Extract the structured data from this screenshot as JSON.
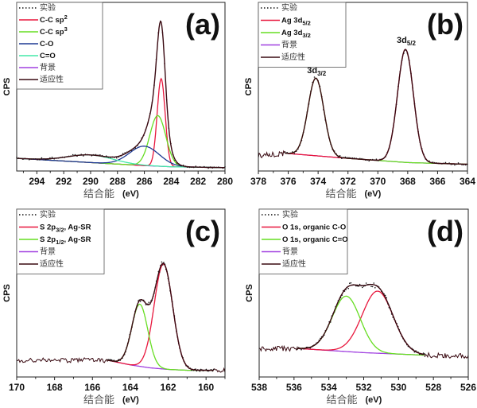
{
  "chart_data": [
    {
      "panel_label": "(a)",
      "type": "line",
      "xlabel": "结合能",
      "xunit": "(eV)",
      "ylabel": "CPS",
      "xlim": [
        295.5,
        280
      ],
      "ylim": [
        0,
        1
      ],
      "xticks": [
        294,
        292,
        290,
        288,
        286,
        284,
        282,
        280
      ],
      "fit_range": [
        295.5,
        280
      ],
      "background": [
        [
          295.5,
          0.075
        ],
        [
          290,
          0.05
        ],
        [
          286,
          0.032
        ],
        [
          284,
          0.025
        ],
        [
          280,
          0.02
        ]
      ],
      "components": [
        {
          "label": "C-C sp",
          "sup": "2",
          "color": "#e8163c",
          "center": 284.75,
          "amplitude": 0.52,
          "fwhm": 0.7
        },
        {
          "label": "C-C sp",
          "sup": "3",
          "color": "#66dd22",
          "center": 285.0,
          "amplitude": 0.3,
          "fwhm": 1.4
        },
        {
          "label": "C-O",
          "color": "#1f3a93",
          "center": 286.0,
          "amplitude": 0.115,
          "fwhm": 2.6
        },
        {
          "label": "C=O",
          "color": "#44e8a8",
          "center": 290.0,
          "amplitude": 0.045,
          "fwhm": 4.0
        }
      ],
      "experimental_label": "实验",
      "background_label": "背景",
      "fit_label": "适应性",
      "background_color": "#a040e0",
      "fit_color": "#3a0a12",
      "annotations": []
    },
    {
      "panel_label": "(b)",
      "type": "line",
      "xlabel": "结合能",
      "xunit": "(eV)",
      "ylabel": "CPS",
      "xlim": [
        378,
        364
      ],
      "ylim": [
        0,
        1
      ],
      "xticks": [
        378,
        376,
        374,
        372,
        370,
        368,
        366,
        364
      ],
      "fit_range": [
        376.2,
        364
      ],
      "baseline_left": 0.09,
      "background": [
        [
          378,
          0.09
        ],
        [
          376.2,
          0.105
        ],
        [
          372,
          0.075
        ],
        [
          368,
          0.05
        ],
        [
          364,
          0.04
        ]
      ],
      "components": [
        {
          "label": "Ag 3d",
          "sub": "5/2",
          "color": "#e8163c",
          "center": 368.15,
          "amplitude": 0.67,
          "fwhm": 1.25
        },
        {
          "label": "Ag 3d",
          "sub": "3/2",
          "color": "#66dd22",
          "center": 374.15,
          "amplitude": 0.46,
          "fwhm": 1.25
        }
      ],
      "experimental_label": "实验",
      "background_label": "背景",
      "fit_label": "适应性",
      "background_color": "#a040e0",
      "fit_color": "#3a0a12",
      "annotations": [
        {
          "text": "3d",
          "sub": "3/2",
          "x": 374.1,
          "y": 0.58
        },
        {
          "text": "3d",
          "sub": "5/2",
          "x": 368.1,
          "y": 0.76
        }
      ]
    },
    {
      "panel_label": "(c)",
      "type": "line",
      "xlabel": "结合能",
      "xunit": "(eV)",
      "ylabel": "CPS",
      "xlim": [
        170,
        159
      ],
      "ylim": [
        0,
        1
      ],
      "xticks": [
        170,
        168,
        166,
        164,
        162,
        160
      ],
      "fit_range": [
        165.2,
        159.6
      ],
      "baseline_left": 0.1,
      "baseline_right": 0.04,
      "background": [
        [
          170,
          0.1
        ],
        [
          165.2,
          0.1
        ],
        [
          164,
          0.072
        ],
        [
          163,
          0.055
        ],
        [
          162,
          0.045
        ],
        [
          161,
          0.04
        ],
        [
          159,
          0.04
        ]
      ],
      "components": [
        {
          "label": "S 2p",
          "sub": "3/2",
          "tail": ", Ag-SR",
          "color": "#e8163c",
          "center": 162.25,
          "amplitude": 0.625,
          "fwhm": 1.15
        },
        {
          "label": "S 2p",
          "sub": "1/2",
          "tail": ", Ag-SR",
          "color": "#66dd22",
          "center": 163.5,
          "amplitude": 0.37,
          "fwhm": 1.0
        }
      ],
      "experimental_label": "实验",
      "background_label": "背景",
      "fit_label": "适应性",
      "background_color": "#a040e0",
      "fit_color": "#3a0a12",
      "annotations": []
    },
    {
      "panel_label": "(d)",
      "type": "line",
      "xlabel": "结合能",
      "xunit": "(eV)",
      "ylabel": "CPS",
      "xlim": [
        538,
        526
      ],
      "ylim": [
        0,
        1
      ],
      "xticks": [
        538,
        536,
        534,
        532,
        530,
        528,
        526
      ],
      "fit_range": [
        535.8,
        528.5
      ],
      "baseline_left": 0.17,
      "baseline_right": 0.125,
      "background": [
        [
          538,
          0.17
        ],
        [
          535.8,
          0.17
        ],
        [
          532,
          0.145
        ],
        [
          528.5,
          0.13
        ],
        [
          526,
          0.125
        ]
      ],
      "components": [
        {
          "label": "O 1s, organic C-O",
          "color": "#e8163c",
          "center": 531.2,
          "amplitude": 0.37,
          "fwhm": 2.1
        },
        {
          "label": "O 1s, organic C=O",
          "color": "#66dd22",
          "center": 533.0,
          "amplitude": 0.33,
          "fwhm": 1.9
        }
      ],
      "experimental_label": "实验",
      "background_label": "背景",
      "fit_label": "适应性",
      "background_color": "#a040e0",
      "fit_color": "#3a0a12",
      "annotations": []
    }
  ]
}
